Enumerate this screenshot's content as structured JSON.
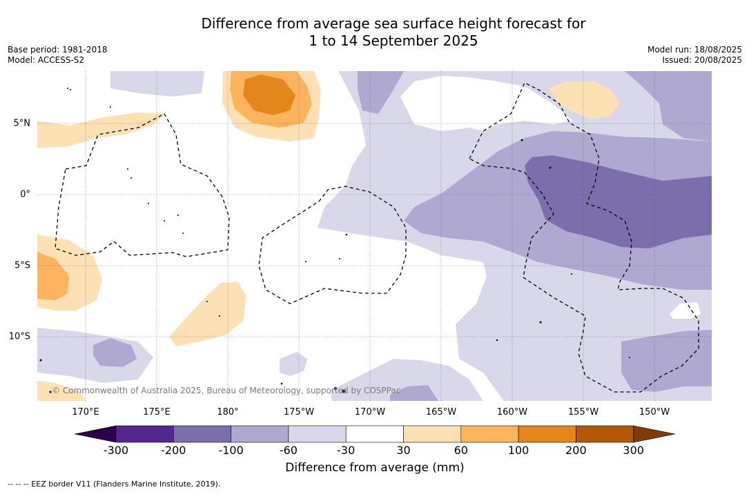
{
  "title_line1": "Difference from average sea surface height forecast for",
  "title_line2": "1 to 14 September 2025",
  "meta": {
    "base_period": "Base period: 1981-2018",
    "model": "Model: ACCESS-S2",
    "model_run": "Model run: 18/08/2025",
    "issued": "Issued: 20/08/2025"
  },
  "longitude_labels": [
    "170°E",
    "175°E",
    "180°",
    "175°W",
    "170°W",
    "165°W",
    "160°W",
    "155°W",
    "150°W"
  ],
  "latitude_labels": [
    "5°N",
    "0°",
    "5°S",
    "10°S"
  ],
  "copyright": "© Commonwealth of Australia 2025, Bureau of Meteorology, supported by COSPPac",
  "colorbar": {
    "title": "Difference from average (mm)",
    "ticks": [
      "-300",
      "-200",
      "-100",
      "-60",
      "-30",
      "30",
      "60",
      "100",
      "200",
      "300"
    ],
    "colors": [
      "#54278f",
      "#7c6dac",
      "#afa8d1",
      "#d8d8ea",
      "#ffffff",
      "#fde0b4",
      "#fbb35d",
      "#e3871d",
      "#b35808"
    ],
    "low_extend_color": "#2d004b",
    "high_extend_color": "#7f3b08"
  },
  "legend_text": "--  --  -- EEZ border V11 (Flanders Marine Institute, 2019)."
}
